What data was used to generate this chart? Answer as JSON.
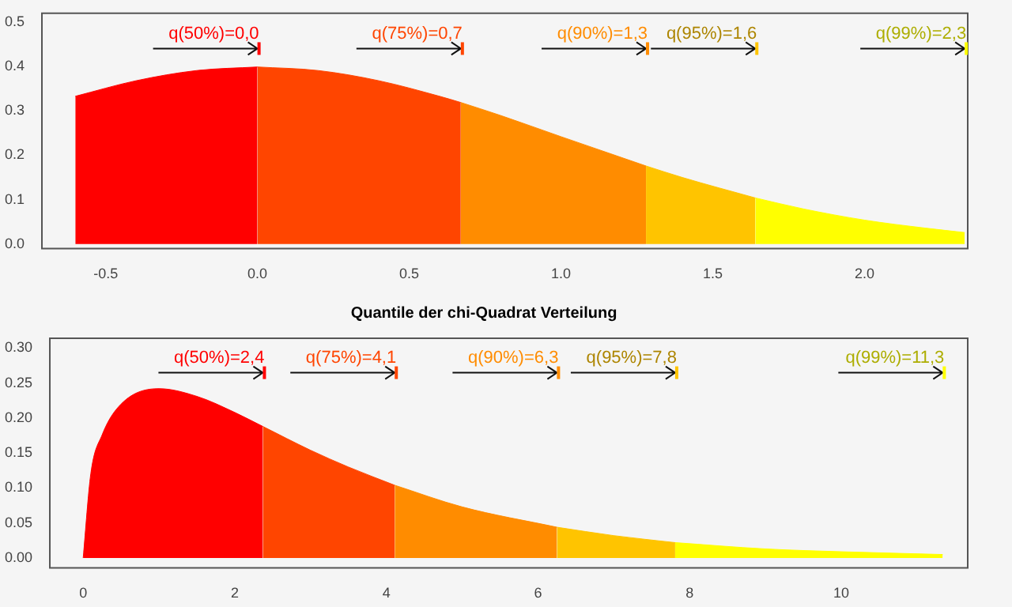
{
  "chart_data": [
    {
      "type": "area",
      "xlim": [
        -0.71,
        2.34
      ],
      "ylim": [
        -0.01,
        0.52
      ],
      "xticks": [
        -0.5,
        {
          "value": 0,
          "label": "0.0"
        },
        0.5,
        {
          "value": 1,
          "label": "1.0"
        },
        1.5,
        {
          "value": 2,
          "label": "2.0"
        }
      ],
      "yticks": [
        {
          "value": 0,
          "label": "0.0"
        },
        0.1,
        0.2,
        0.3,
        0.4,
        0.5
      ],
      "series": [
        {
          "color": "#ff0000",
          "x": [
            -0.6,
            -0.4,
            -0.2,
            0
          ],
          "values": [
            0.333,
            0.368,
            0.391,
            0.399
          ]
        },
        {
          "color": "#ff4500",
          "x": [
            0,
            0.2,
            0.4,
            0.6,
            0.67
          ],
          "values": [
            0.399,
            0.391,
            0.368,
            0.333,
            0.319
          ]
        },
        {
          "color": "#ff8c00",
          "x": [
            0.67,
            0.8,
            1.0,
            1.28
          ],
          "values": [
            0.319,
            0.29,
            0.242,
            0.176
          ]
        },
        {
          "color": "#ffc400",
          "x": [
            1.28,
            1.4,
            1.64
          ],
          "values": [
            0.176,
            0.15,
            0.104
          ]
        },
        {
          "color": "#ffff00",
          "x": [
            1.64,
            1.8,
            2.0,
            2.2,
            2.33
          ],
          "values": [
            0.104,
            0.079,
            0.054,
            0.036,
            0.026
          ]
        }
      ],
      "annotations": [
        "q(50%)=0,0",
        "q(75%)=0,7",
        "q(90%)=1,3",
        "q(95%)=1,6",
        "q(99%)=2,3"
      ],
      "grid": false,
      "legend": false
    },
    {
      "type": "area",
      "title": "Quantile der chi-Quadrat Verteilung",
      "xlim": [
        -0.44,
        11.67
      ],
      "ylim": [
        -0.014,
        0.314
      ],
      "xticks": [
        0,
        2,
        4,
        6,
        8,
        10
      ],
      "yticks": [
        {
          "value": 0,
          "label": "0.00"
        },
        0.05,
        {
          "value": 0.1,
          "label": "0.10"
        },
        0.15,
        {
          "value": 0.2,
          "label": "0.20"
        },
        0.25,
        {
          "value": 0.3,
          "label": "0.30"
        }
      ],
      "series": [
        {
          "color": "#ff0000",
          "x": [
            0,
            0.1,
            0.25,
            0.5,
            1,
            1.5,
            2,
            2.37
          ],
          "values": [
            0,
            0.12,
            0.176,
            0.22,
            0.242,
            0.231,
            0.208,
            0.188
          ]
        },
        {
          "color": "#ff4500",
          "x": [
            2.37,
            3,
            3.5,
            4.11
          ],
          "values": [
            0.188,
            0.154,
            0.13,
            0.104
          ]
        },
        {
          "color": "#ff8c00",
          "x": [
            4.11,
            5,
            6.25
          ],
          "values": [
            0.104,
            0.073,
            0.044
          ]
        },
        {
          "color": "#ffc400",
          "x": [
            6.25,
            7,
            7.81
          ],
          "values": [
            0.044,
            0.032,
            0.022
          ]
        },
        {
          "color": "#ffff00",
          "x": [
            7.81,
            9,
            10,
            11.34
          ],
          "values": [
            0.022,
            0.013,
            0.009,
            0.005
          ]
        }
      ],
      "annotations": [
        "q(50%)=2,4",
        "q(75%)=4,1",
        "q(90%)=6,3",
        "q(95%)=7,8",
        "q(99%)=11,3"
      ],
      "grid": false,
      "legend": false
    }
  ]
}
